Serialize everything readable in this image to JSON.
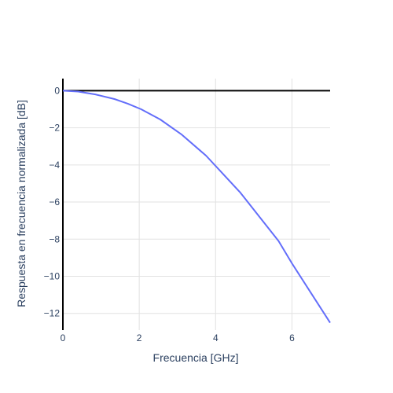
{
  "chart_data": {
    "type": "line",
    "title": "",
    "xlabel": "Frecuencia [GHz]",
    "ylabel": "Respuesta en frecuencia normalizada [dB]",
    "xlim": [
      0,
      7
    ],
    "ylim": [
      -12.9,
      0.65
    ],
    "xticks": [
      0,
      2,
      4,
      6
    ],
    "xtick_labels": [
      "0",
      "2",
      "4",
      "6"
    ],
    "yticks": [
      0,
      -2,
      -4,
      -6,
      -8,
      -10,
      -12
    ],
    "ytick_labels": [
      "0",
      "−2",
      "−4",
      "−6",
      "−8",
      "−10",
      "−12"
    ],
    "grid": true,
    "reference_line": {
      "y": 0,
      "color": "#000000"
    },
    "series": [
      {
        "color": "#636efa",
        "x": [
          0,
          0.4,
          0.85,
          1.35,
          1.7,
          2.05,
          2.55,
          3.1,
          3.75,
          4.2,
          4.65,
          5.15,
          5.65,
          6.0,
          6.5,
          7.0
        ],
        "y": [
          0,
          -0.05,
          -0.2,
          -0.45,
          -0.7,
          -1.0,
          -1.55,
          -2.35,
          -3.5,
          -4.5,
          -5.5,
          -6.8,
          -8.1,
          -9.3,
          -10.9,
          -12.5
        ]
      }
    ]
  }
}
